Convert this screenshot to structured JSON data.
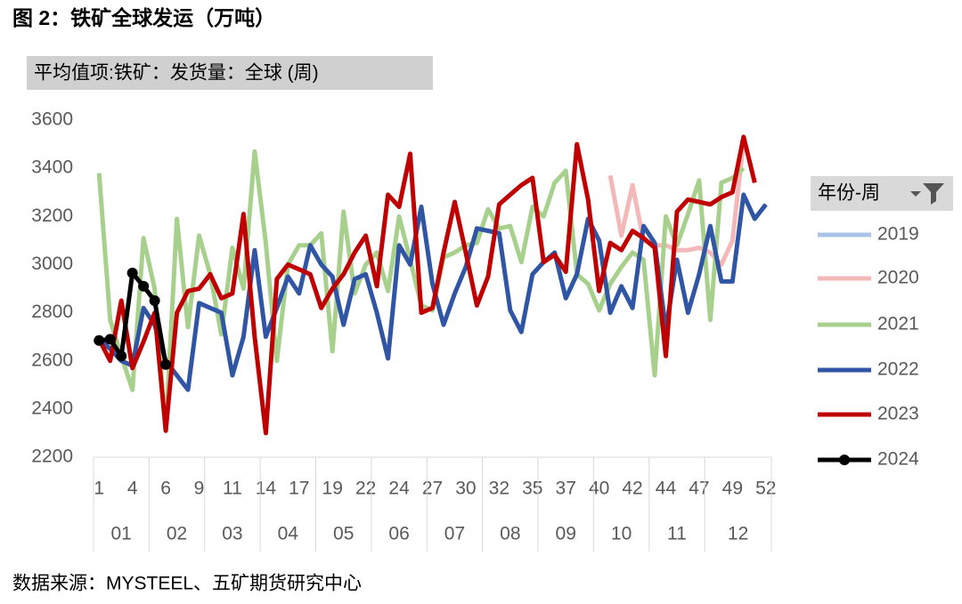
{
  "chart_data": {
    "type": "line",
    "title": "图 2：铁矿全球发运（万吨）",
    "subtitle": "平均值项:铁矿：发货量：全球 (周)",
    "legend_title": "年份-周",
    "source": "数据来源：MYSTEEL、五矿期货研究中心",
    "categories": [
      "1",
      null,
      null,
      "4",
      null,
      null,
      "6",
      null,
      null,
      "9",
      null,
      null,
      "11",
      null,
      null,
      "14",
      null,
      null,
      "17",
      null,
      null,
      "19",
      null,
      null,
      "22",
      null,
      null,
      "24",
      null,
      null,
      "27",
      null,
      null,
      "30",
      null,
      null,
      "32",
      null,
      null,
      "35",
      null,
      null,
      "37",
      null,
      null,
      "40",
      null,
      null,
      "42",
      null,
      null,
      "44",
      null,
      null,
      "47",
      null,
      null,
      "49",
      null,
      null,
      "52"
    ],
    "groups": [
      {
        "label": "01",
        "count": 5
      },
      {
        "label": "02",
        "count": 5
      },
      {
        "label": "03",
        "count": 5
      },
      {
        "label": "04",
        "count": 5
      },
      {
        "label": "05",
        "count": 5
      },
      {
        "label": "06",
        "count": 5
      },
      {
        "label": "07",
        "count": 5
      },
      {
        "label": "08",
        "count": 5
      },
      {
        "label": "09",
        "count": 5
      },
      {
        "label": "10",
        "count": 5
      },
      {
        "label": "11",
        "count": 5
      },
      {
        "label": "12",
        "count": 6
      }
    ],
    "ylim": [
      2200,
      3600
    ],
    "yticks": [
      2200,
      2400,
      2600,
      2800,
      3000,
      3200,
      3400,
      3600
    ],
    "grid": false,
    "legend": "right",
    "series": [
      {
        "name": "2019",
        "color": "#a9c4e8",
        "values": [
          null,
          null,
          null,
          null,
          null,
          null,
          null,
          null,
          null,
          null,
          null,
          null,
          null,
          null,
          null,
          null,
          null,
          null,
          null,
          null,
          null,
          null,
          null,
          null,
          null,
          null,
          null,
          null,
          null,
          null,
          null,
          null,
          null,
          null,
          null,
          null,
          null,
          null,
          null,
          null,
          null,
          null,
          null,
          null,
          null,
          null,
          null,
          null,
          null,
          null,
          null,
          null,
          null,
          null,
          null,
          null,
          null,
          null,
          null,
          null,
          null
        ]
      },
      {
        "name": "2020",
        "color": "#f4b8b8",
        "values": [
          null,
          null,
          null,
          null,
          null,
          null,
          null,
          null,
          null,
          null,
          null,
          null,
          null,
          null,
          null,
          null,
          null,
          null,
          null,
          null,
          null,
          null,
          null,
          null,
          null,
          null,
          null,
          null,
          null,
          null,
          null,
          null,
          null,
          null,
          null,
          null,
          null,
          null,
          null,
          null,
          null,
          null,
          null,
          null,
          null,
          null,
          3370,
          3120,
          3330,
          3100,
          3080,
          3080,
          3060,
          3060,
          3070,
          3050,
          3000,
          3100,
          3510,
          null,
          null
        ]
      },
      {
        "name": "2021",
        "color": "#a8d08d",
        "values": [
          3380,
          2770,
          2620,
          2480,
          3110,
          2900,
          2310,
          3190,
          2740,
          3120,
          2960,
          2710,
          3070,
          2900,
          3470,
          3090,
          2600,
          3000,
          3080,
          3080,
          3130,
          2640,
          3220,
          2880,
          3000,
          3050,
          2890,
          3200,
          3020,
          2830,
          2810,
          3030,
          3050,
          3080,
          3090,
          3230,
          3150,
          3160,
          3010,
          3240,
          3200,
          3340,
          3390,
          2960,
          2920,
          2810,
          2920,
          2990,
          3050,
          3020,
          2540,
          3200,
          3080,
          3210,
          3350,
          2770,
          3340,
          3360,
          3400,
          null,
          null
        ]
      },
      {
        "name": "2022",
        "color": "#2f55a4",
        "values": [
          2690,
          2650,
          2600,
          2580,
          2820,
          2750,
          2600,
          2540,
          2480,
          2840,
          2820,
          2800,
          2540,
          2700,
          3060,
          2700,
          2820,
          2950,
          2880,
          3080,
          3000,
          2950,
          2750,
          2940,
          2960,
          2800,
          2610,
          3080,
          3000,
          3240,
          2920,
          2750,
          2880,
          2990,
          3150,
          3140,
          3130,
          2810,
          2720,
          2960,
          3010,
          3050,
          2860,
          2960,
          3190,
          3100,
          2800,
          2910,
          2820,
          3160,
          3090,
          2730,
          3020,
          2800,
          2960,
          3160,
          2930,
          2930,
          3290,
          3190,
          3250
        ]
      },
      {
        "name": "2023",
        "color": "#c00000",
        "values": [
          2690,
          2600,
          2850,
          2570,
          2680,
          2800,
          2310,
          2800,
          2890,
          2900,
          2960,
          2860,
          2880,
          3210,
          2700,
          2300,
          2940,
          3000,
          2980,
          2960,
          2820,
          2900,
          2960,
          3050,
          3120,
          2910,
          3290,
          3240,
          3460,
          2800,
          2820,
          3050,
          3260,
          3050,
          2830,
          2950,
          3250,
          3290,
          3330,
          3360,
          3010,
          3040,
          2970,
          3500,
          3270,
          2890,
          3090,
          3060,
          3140,
          3110,
          3070,
          2620,
          3220,
          3270,
          3260,
          3250,
          3280,
          3300,
          3530,
          3340,
          null
        ]
      },
      {
        "name": "2024",
        "color": "#000000",
        "marker": true,
        "values": [
          2685,
          2690,
          2620,
          2965,
          2910,
          2850,
          2585,
          null,
          null,
          null,
          null,
          null,
          null,
          null,
          null,
          null,
          null,
          null,
          null,
          null,
          null,
          null,
          null,
          null,
          null,
          null,
          null,
          null,
          null,
          null,
          null,
          null,
          null,
          null,
          null,
          null,
          null,
          null,
          null,
          null,
          null,
          null,
          null,
          null,
          null,
          null,
          null,
          null,
          null,
          null,
          null,
          null,
          null,
          null,
          null,
          null,
          null,
          null,
          null,
          null,
          null
        ]
      }
    ]
  }
}
